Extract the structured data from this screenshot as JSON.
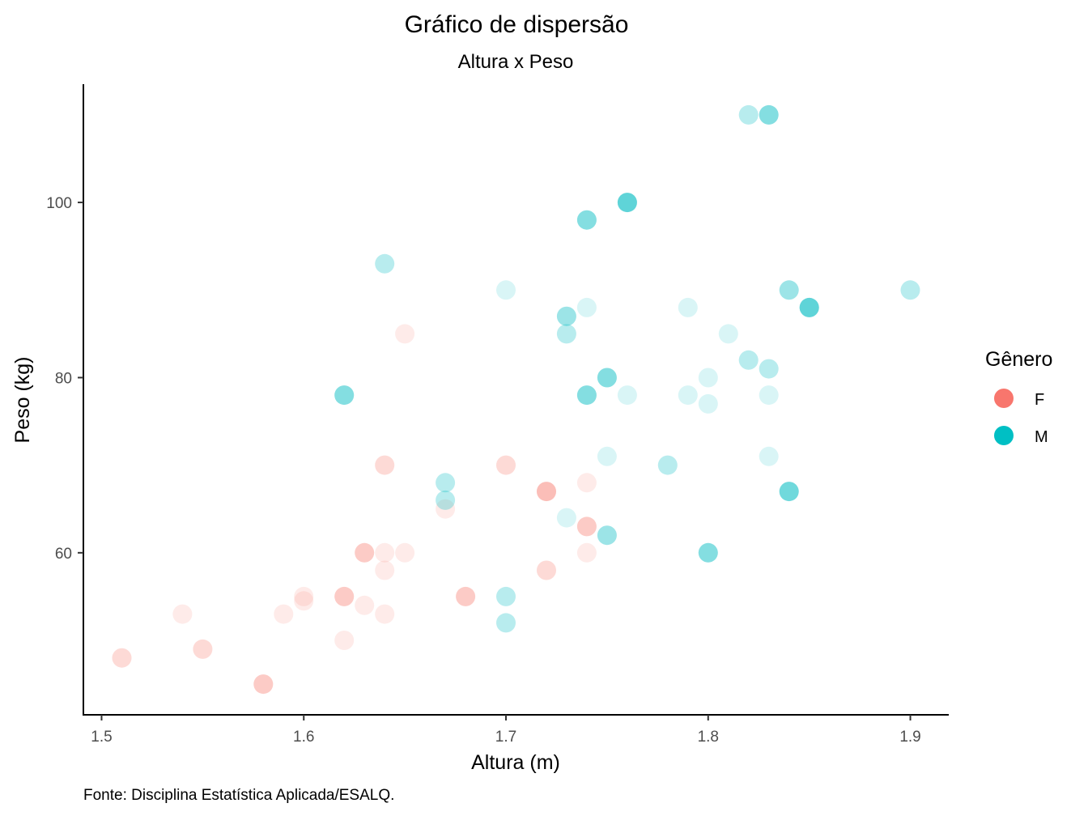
{
  "chart_data": {
    "type": "scatter",
    "title": "Gráfico de dispersão",
    "subtitle": "Altura x Peso",
    "xlabel": "Altura (m)",
    "ylabel": "Peso (kg)",
    "caption": "Fonte: Disciplina Estatística Aplicada/ESALQ.",
    "xlim": [
      1.491,
      1.919
    ],
    "ylim": [
      41.5,
      113.5
    ],
    "x_ticks": [
      "1.5",
      "1.6",
      "1.7",
      "1.8",
      "1.9"
    ],
    "x_tick_values": [
      1.5,
      1.6,
      1.7,
      1.8,
      1.9
    ],
    "y_ticks": [
      "60",
      "80",
      "100"
    ],
    "y_tick_values": [
      60,
      80,
      100
    ],
    "grid": false,
    "legend": {
      "title": "Gênero",
      "position": "right",
      "entries": [
        {
          "label": "F",
          "color": "#F8766D"
        },
        {
          "label": "M",
          "color": "#00BFC4"
        }
      ]
    },
    "point_opacity": 0.15,
    "series": [
      {
        "name": "F",
        "color": "#F8766D",
        "points": [
          {
            "x": 1.51,
            "y": 48
          },
          {
            "x": 1.51,
            "y": 48
          },
          {
            "x": 1.54,
            "y": 53
          },
          {
            "x": 1.55,
            "y": 49
          },
          {
            "x": 1.55,
            "y": 49
          },
          {
            "x": 1.58,
            "y": 45
          },
          {
            "x": 1.58,
            "y": 45
          },
          {
            "x": 1.58,
            "y": 45
          },
          {
            "x": 1.59,
            "y": 53
          },
          {
            "x": 1.6,
            "y": 55
          },
          {
            "x": 1.6,
            "y": 54.5
          },
          {
            "x": 1.62,
            "y": 55
          },
          {
            "x": 1.62,
            "y": 55
          },
          {
            "x": 1.62,
            "y": 55
          },
          {
            "x": 1.62,
            "y": 50
          },
          {
            "x": 1.63,
            "y": 60
          },
          {
            "x": 1.63,
            "y": 60
          },
          {
            "x": 1.63,
            "y": 60
          },
          {
            "x": 1.63,
            "y": 54
          },
          {
            "x": 1.64,
            "y": 70
          },
          {
            "x": 1.64,
            "y": 70
          },
          {
            "x": 1.64,
            "y": 60
          },
          {
            "x": 1.64,
            "y": 58
          },
          {
            "x": 1.64,
            "y": 53
          },
          {
            "x": 1.65,
            "y": 85
          },
          {
            "x": 1.65,
            "y": 60
          },
          {
            "x": 1.67,
            "y": 65
          },
          {
            "x": 1.68,
            "y": 55
          },
          {
            "x": 1.68,
            "y": 55
          },
          {
            "x": 1.68,
            "y": 55
          },
          {
            "x": 1.7,
            "y": 70
          },
          {
            "x": 1.7,
            "y": 70
          },
          {
            "x": 1.72,
            "y": 67
          },
          {
            "x": 1.72,
            "y": 67
          },
          {
            "x": 1.72,
            "y": 67
          },
          {
            "x": 1.72,
            "y": 67
          },
          {
            "x": 1.72,
            "y": 58
          },
          {
            "x": 1.72,
            "y": 58
          },
          {
            "x": 1.74,
            "y": 68
          },
          {
            "x": 1.74,
            "y": 63
          },
          {
            "x": 1.74,
            "y": 63
          },
          {
            "x": 1.74,
            "y": 63
          },
          {
            "x": 1.74,
            "y": 60
          }
        ]
      },
      {
        "name": "M",
        "color": "#00BFC4",
        "points": [
          {
            "x": 1.62,
            "y": 78
          },
          {
            "x": 1.62,
            "y": 78
          },
          {
            "x": 1.62,
            "y": 78
          },
          {
            "x": 1.62,
            "y": 78
          },
          {
            "x": 1.64,
            "y": 93
          },
          {
            "x": 1.64,
            "y": 93
          },
          {
            "x": 1.67,
            "y": 68
          },
          {
            "x": 1.67,
            "y": 68
          },
          {
            "x": 1.67,
            "y": 66
          },
          {
            "x": 1.67,
            "y": 66
          },
          {
            "x": 1.7,
            "y": 90
          },
          {
            "x": 1.7,
            "y": 55
          },
          {
            "x": 1.7,
            "y": 55
          },
          {
            "x": 1.7,
            "y": 52
          },
          {
            "x": 1.7,
            "y": 52
          },
          {
            "x": 1.73,
            "y": 87
          },
          {
            "x": 1.73,
            "y": 87
          },
          {
            "x": 1.73,
            "y": 87
          },
          {
            "x": 1.73,
            "y": 85
          },
          {
            "x": 1.73,
            "y": 85
          },
          {
            "x": 1.73,
            "y": 64
          },
          {
            "x": 1.74,
            "y": 98
          },
          {
            "x": 1.74,
            "y": 98
          },
          {
            "x": 1.74,
            "y": 98
          },
          {
            "x": 1.74,
            "y": 98
          },
          {
            "x": 1.74,
            "y": 88
          },
          {
            "x": 1.74,
            "y": 78
          },
          {
            "x": 1.74,
            "y": 78
          },
          {
            "x": 1.74,
            "y": 78
          },
          {
            "x": 1.74,
            "y": 78
          },
          {
            "x": 1.75,
            "y": 80
          },
          {
            "x": 1.75,
            "y": 80
          },
          {
            "x": 1.75,
            "y": 80
          },
          {
            "x": 1.75,
            "y": 80
          },
          {
            "x": 1.75,
            "y": 71
          },
          {
            "x": 1.75,
            "y": 62
          },
          {
            "x": 1.75,
            "y": 62
          },
          {
            "x": 1.75,
            "y": 62
          },
          {
            "x": 1.76,
            "y": 100
          },
          {
            "x": 1.76,
            "y": 100
          },
          {
            "x": 1.76,
            "y": 100
          },
          {
            "x": 1.76,
            "y": 100
          },
          {
            "x": 1.76,
            "y": 100
          },
          {
            "x": 1.76,
            "y": 100
          },
          {
            "x": 1.76,
            "y": 78
          },
          {
            "x": 1.78,
            "y": 70
          },
          {
            "x": 1.78,
            "y": 70
          },
          {
            "x": 1.79,
            "y": 88
          },
          {
            "x": 1.79,
            "y": 78
          },
          {
            "x": 1.8,
            "y": 80
          },
          {
            "x": 1.8,
            "y": 77
          },
          {
            "x": 1.8,
            "y": 60
          },
          {
            "x": 1.8,
            "y": 60
          },
          {
            "x": 1.8,
            "y": 60
          },
          {
            "x": 1.8,
            "y": 60
          },
          {
            "x": 1.81,
            "y": 85
          },
          {
            "x": 1.82,
            "y": 110
          },
          {
            "x": 1.82,
            "y": 110
          },
          {
            "x": 1.82,
            "y": 82
          },
          {
            "x": 1.82,
            "y": 82
          },
          {
            "x": 1.83,
            "y": 110
          },
          {
            "x": 1.83,
            "y": 110
          },
          {
            "x": 1.83,
            "y": 110
          },
          {
            "x": 1.83,
            "y": 110
          },
          {
            "x": 1.83,
            "y": 81
          },
          {
            "x": 1.83,
            "y": 81
          },
          {
            "x": 1.83,
            "y": 78
          },
          {
            "x": 1.83,
            "y": 71
          },
          {
            "x": 1.84,
            "y": 90
          },
          {
            "x": 1.84,
            "y": 90
          },
          {
            "x": 1.84,
            "y": 90
          },
          {
            "x": 1.84,
            "y": 67
          },
          {
            "x": 1.84,
            "y": 67
          },
          {
            "x": 1.84,
            "y": 67
          },
          {
            "x": 1.84,
            "y": 67
          },
          {
            "x": 1.84,
            "y": 67
          },
          {
            "x": 1.85,
            "y": 88
          },
          {
            "x": 1.85,
            "y": 88
          },
          {
            "x": 1.85,
            "y": 88
          },
          {
            "x": 1.85,
            "y": 88
          },
          {
            "x": 1.85,
            "y": 88
          },
          {
            "x": 1.85,
            "y": 88
          },
          {
            "x": 1.9,
            "y": 90
          },
          {
            "x": 1.9,
            "y": 90
          }
        ]
      }
    ]
  }
}
